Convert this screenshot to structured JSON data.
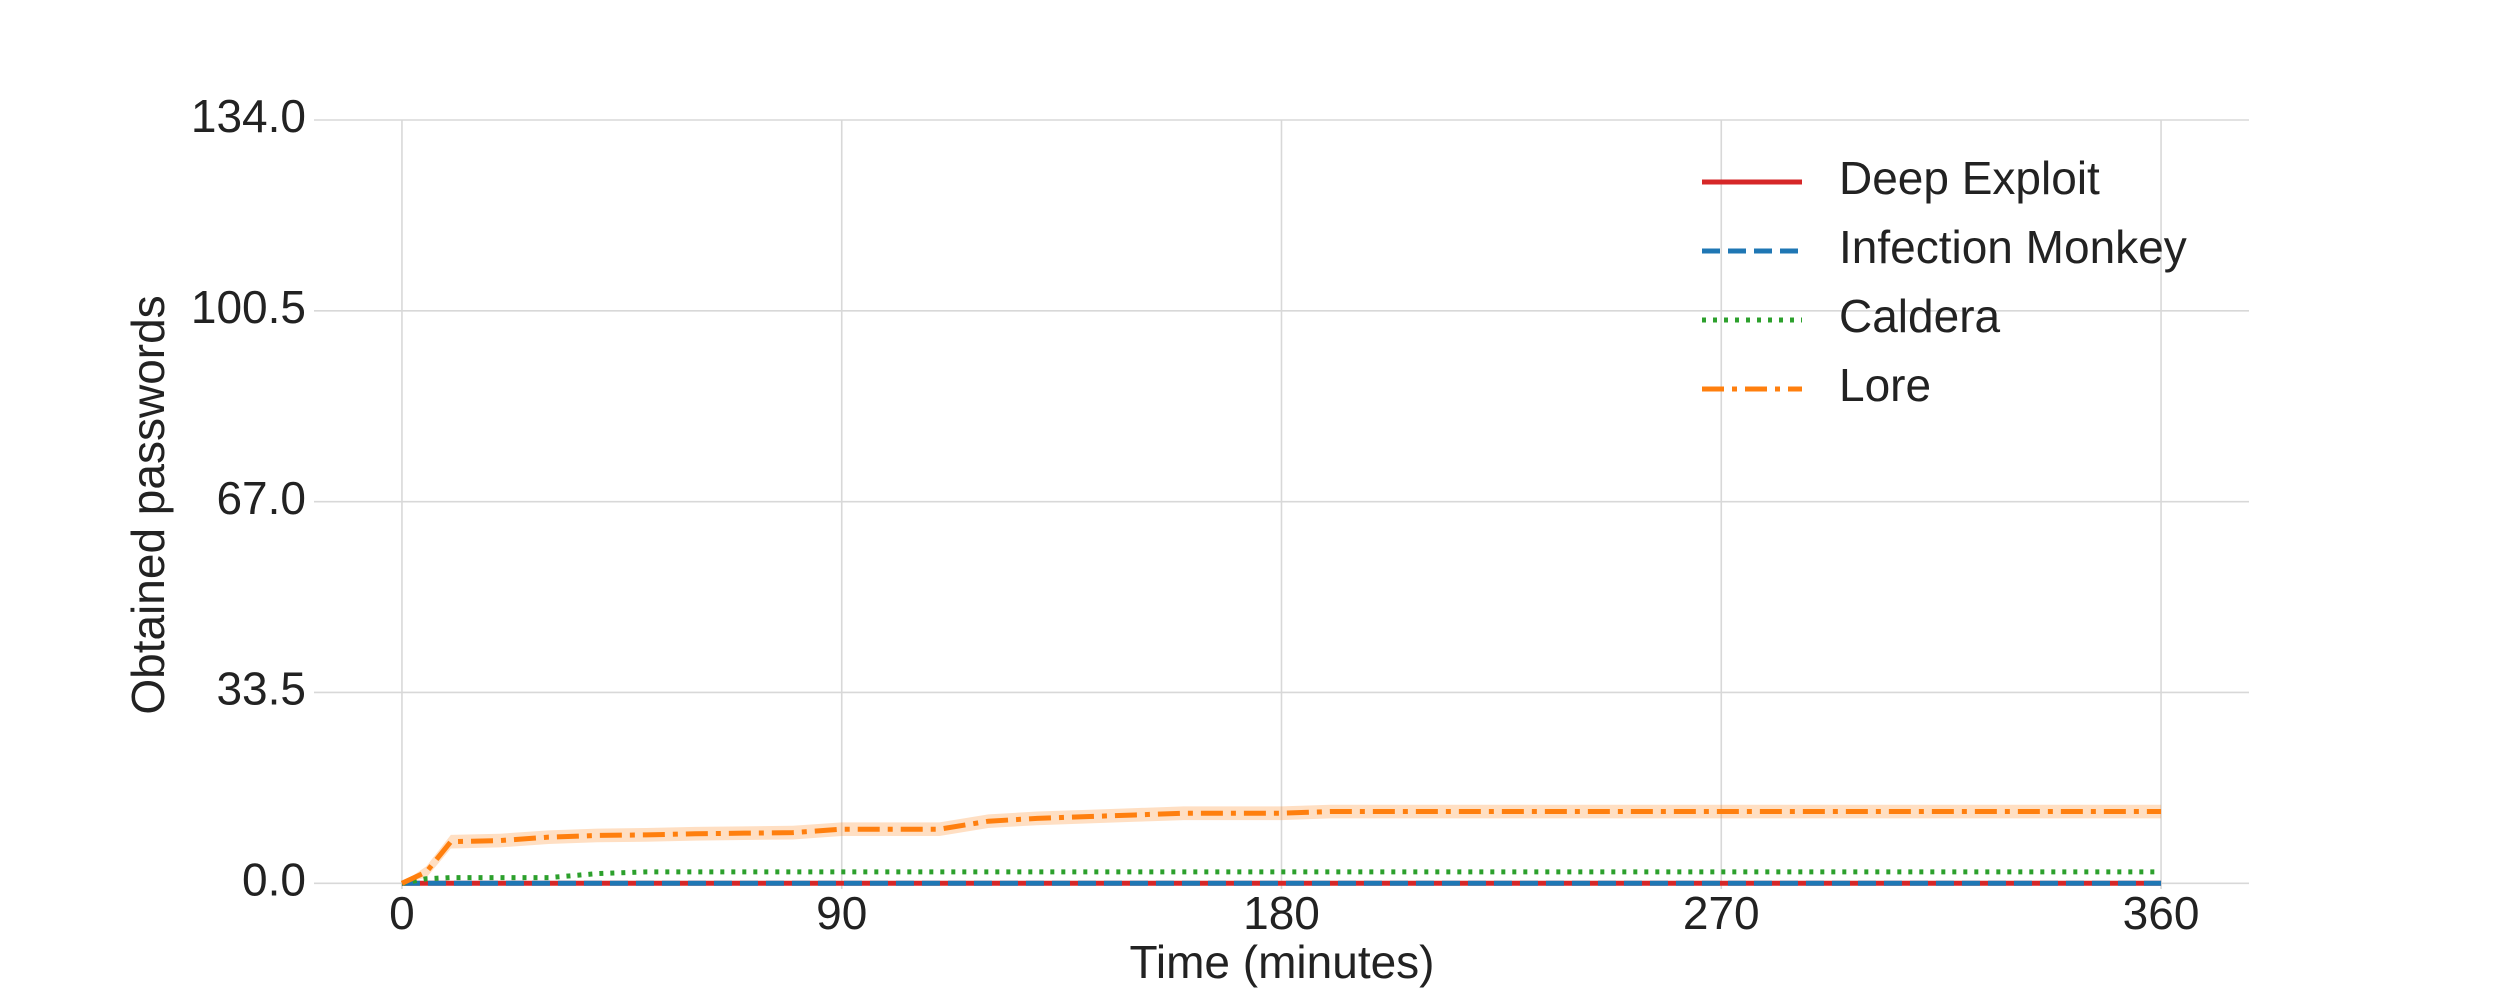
{
  "chart_data": {
    "type": "line",
    "xlabel": "Time (minutes)",
    "ylabel": "Obtained passwords",
    "x": [
      0,
      5,
      10,
      20,
      30,
      40,
      50,
      60,
      70,
      80,
      90,
      100,
      110,
      120,
      130,
      140,
      150,
      160,
      170,
      180,
      190,
      220,
      250,
      280,
      310,
      340,
      360
    ],
    "series": [
      {
        "name": "Deep Exploit",
        "color": "#d62728",
        "linestyle": "solid",
        "values": [
          0,
          0,
          0,
          0,
          0,
          0,
          0,
          0,
          0,
          0,
          0,
          0,
          0,
          0,
          0,
          0,
          0,
          0,
          0,
          0,
          0,
          0,
          0,
          0,
          0,
          0,
          0
        ]
      },
      {
        "name": "Infection Monkey",
        "color": "#1f77b4",
        "linestyle": "dashed",
        "values": [
          0,
          0,
          0,
          0,
          0,
          0,
          0,
          0,
          0,
          0,
          0,
          0,
          0,
          0,
          0,
          0,
          0,
          0,
          0,
          0,
          0,
          0,
          0,
          0,
          0,
          0,
          0
        ]
      },
      {
        "name": "Caldera",
        "color": "#2ca02c",
        "linestyle": "dotted",
        "values": [
          0,
          0.8,
          1,
          1,
          1,
          1.7,
          2,
          2,
          2,
          2,
          2,
          2,
          2,
          2,
          2,
          2,
          2,
          2,
          2,
          2,
          2,
          2,
          2,
          2,
          2,
          2,
          2
        ]
      },
      {
        "name": "Lore",
        "color": "#ff7f0e",
        "linestyle": "dashdot",
        "values": [
          0,
          2,
          7.3,
          7.5,
          8.1,
          8.4,
          8.5,
          8.7,
          8.8,
          8.9,
          9.5,
          9.5,
          9.5,
          10.9,
          11.4,
          11.7,
          12,
          12.3,
          12.3,
          12.3,
          12.6,
          12.6,
          12.6,
          12.6,
          12.6,
          12.6,
          12.6
        ],
        "lower": [
          0,
          1,
          6.1,
          6.3,
          6.9,
          7.2,
          7.3,
          7.5,
          7.6,
          7.7,
          8.3,
          8.3,
          8.3,
          9.7,
          10.2,
          10.5,
          10.8,
          11.1,
          11.1,
          11.1,
          11.4,
          11.4,
          11.4,
          11.4,
          11.4,
          11.4,
          11.4
        ],
        "upper": [
          0,
          3,
          8.5,
          8.7,
          9.3,
          9.6,
          9.7,
          9.9,
          10,
          10.1,
          10.7,
          10.7,
          10.7,
          12.1,
          12.6,
          12.9,
          13.2,
          13.5,
          13.5,
          13.5,
          13.8,
          13.8,
          13.8,
          13.8,
          13.8,
          13.8,
          13.8
        ]
      }
    ],
    "xlim": [
      -18,
      378
    ],
    "xticks": [
      0,
      90,
      180,
      270,
      360
    ],
    "ylim": [
      -1,
      134
    ],
    "yticks": [
      {
        "value": 0,
        "label": "0.0"
      },
      {
        "value": 33.5,
        "label": "33.5"
      },
      {
        "value": 67,
        "label": "67.0"
      },
      {
        "value": 100.5,
        "label": "100.5"
      },
      {
        "value": 134,
        "label": "134.0"
      }
    ],
    "grid": true,
    "legend": "upper right"
  }
}
